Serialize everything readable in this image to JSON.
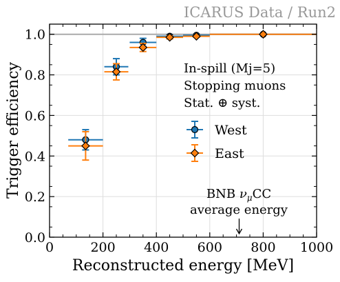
{
  "chart_data": {
    "type": "scatter",
    "watermark": "ICARUS Data / Run2",
    "xlabel": "Reconstructed energy [MeV]",
    "ylabel": "Trigger efficiency",
    "xlim": [
      0,
      1000
    ],
    "ylim": [
      0,
      1.05
    ],
    "xticks": [
      0,
      200,
      400,
      600,
      800,
      1000
    ],
    "xtick_labels": [
      "0",
      "200",
      "400",
      "600",
      "800",
      "1000"
    ],
    "yticks": [
      0.0,
      0.2,
      0.4,
      0.6,
      0.8,
      1.0
    ],
    "ytick_labels": [
      "0.0",
      "0.2",
      "0.4",
      "0.6",
      "0.8",
      "1.0"
    ],
    "grid": true,
    "reference_line": {
      "y": 1.0,
      "color": "#aaaaaa"
    },
    "annotation_lines": [
      "In-spill (Mj=5)",
      "Stopping muons",
      "Stat. ⊕ syst."
    ],
    "legend_placement": "right",
    "series": [
      {
        "name": "West",
        "color": "#1f77b4",
        "x": [
          135,
          250,
          350,
          450,
          550,
          800
        ],
        "y": [
          0.48,
          0.84,
          0.96,
          0.99,
          0.995,
          1.0
        ],
        "x_err": [
          65,
          45,
          50,
          50,
          50,
          200
        ],
        "y_err": [
          0.05,
          0.04,
          0.02,
          0.008,
          0.005,
          0.003
        ]
      },
      {
        "name": "East",
        "color": "#ff7f0e",
        "x": [
          135,
          250,
          350,
          450,
          550,
          800
        ],
        "y": [
          0.45,
          0.815,
          0.935,
          0.985,
          0.99,
          1.0
        ],
        "x_err": [
          65,
          45,
          50,
          50,
          50,
          200
        ],
        "y_err": [
          0.07,
          0.04,
          0.02,
          0.008,
          0.005,
          0.003
        ]
      }
    ],
    "arrow_annotation": {
      "line1": "BNB ",
      "nu": "ν",
      "sub": "μ",
      "cc": "CC",
      "line2": "average energy",
      "x": 710
    }
  }
}
